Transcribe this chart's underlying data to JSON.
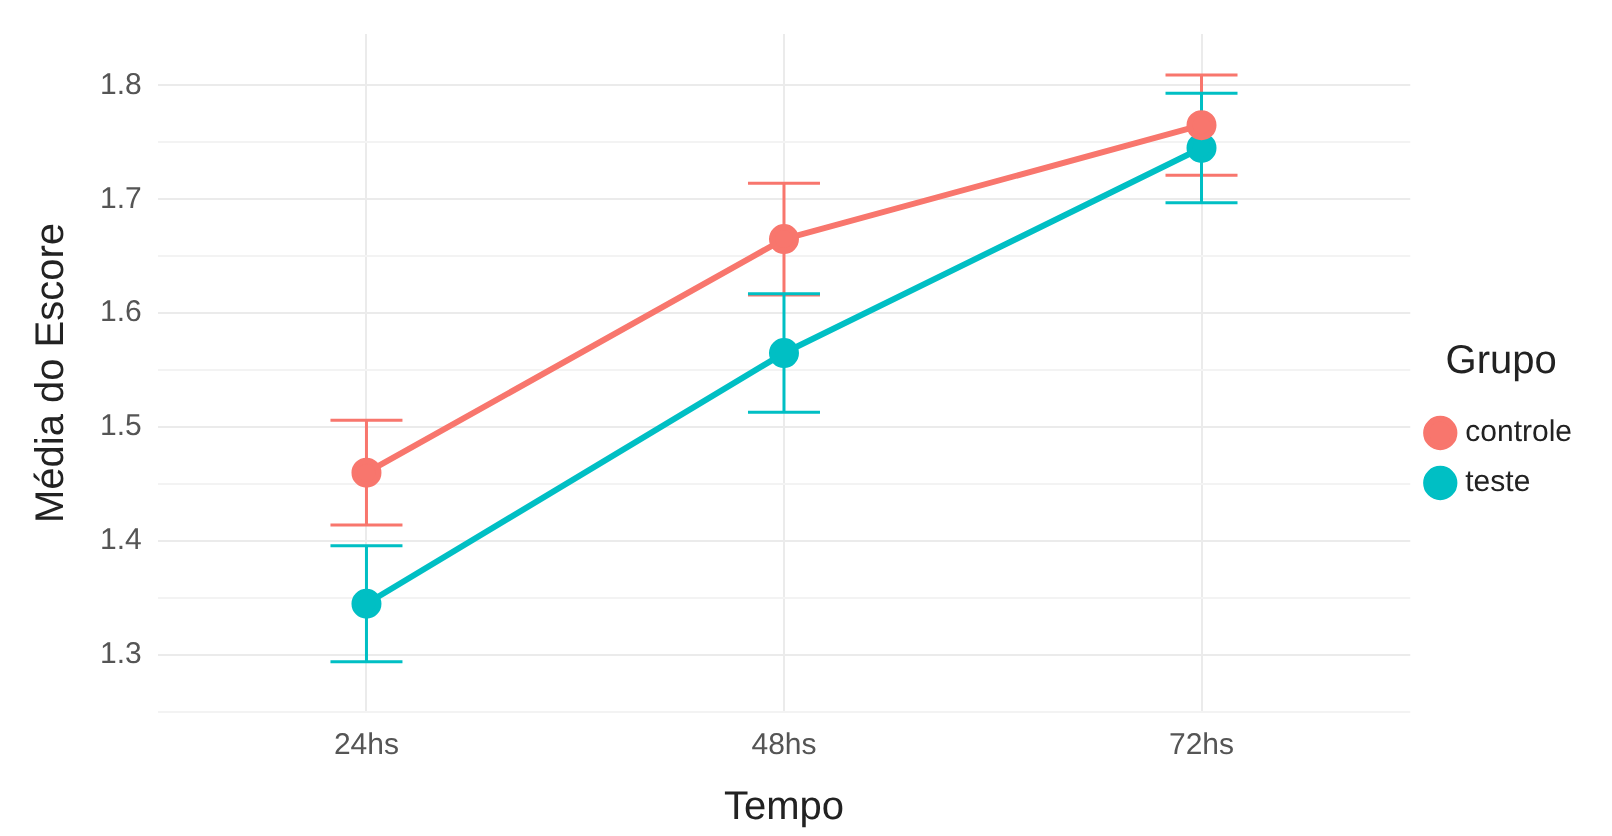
{
  "chart_data": {
    "type": "line",
    "xlabel": "Tempo",
    "ylabel": "Média do Escore",
    "legend_title": "Grupo",
    "categories": [
      "24hs",
      "48hs",
      "72hs"
    ],
    "series": [
      {
        "name": "controle",
        "color": "#f8766d",
        "values": [
          1.46,
          1.665,
          1.765
        ],
        "errors": [
          0.046,
          0.049,
          0.044
        ]
      },
      {
        "name": "teste",
        "color": "#00bfc4",
        "values": [
          1.345,
          1.565,
          1.745
        ],
        "errors": [
          0.051,
          0.052,
          0.048
        ]
      }
    ],
    "ylim": [
      1.25,
      1.845
    ],
    "yticks": [
      {
        "value": 1.25,
        "label": null
      },
      1.3,
      {
        "value": 1.35,
        "label": null
      },
      1.4,
      {
        "value": 1.45,
        "label": null
      },
      1.5,
      {
        "value": 1.55,
        "label": null
      },
      1.6,
      {
        "value": 1.65,
        "label": null
      },
      1.7,
      {
        "value": 1.75,
        "label": null
      },
      1.8
    ],
    "grid": true,
    "legend": "right",
    "marker": "circle",
    "line_style": "solid"
  }
}
